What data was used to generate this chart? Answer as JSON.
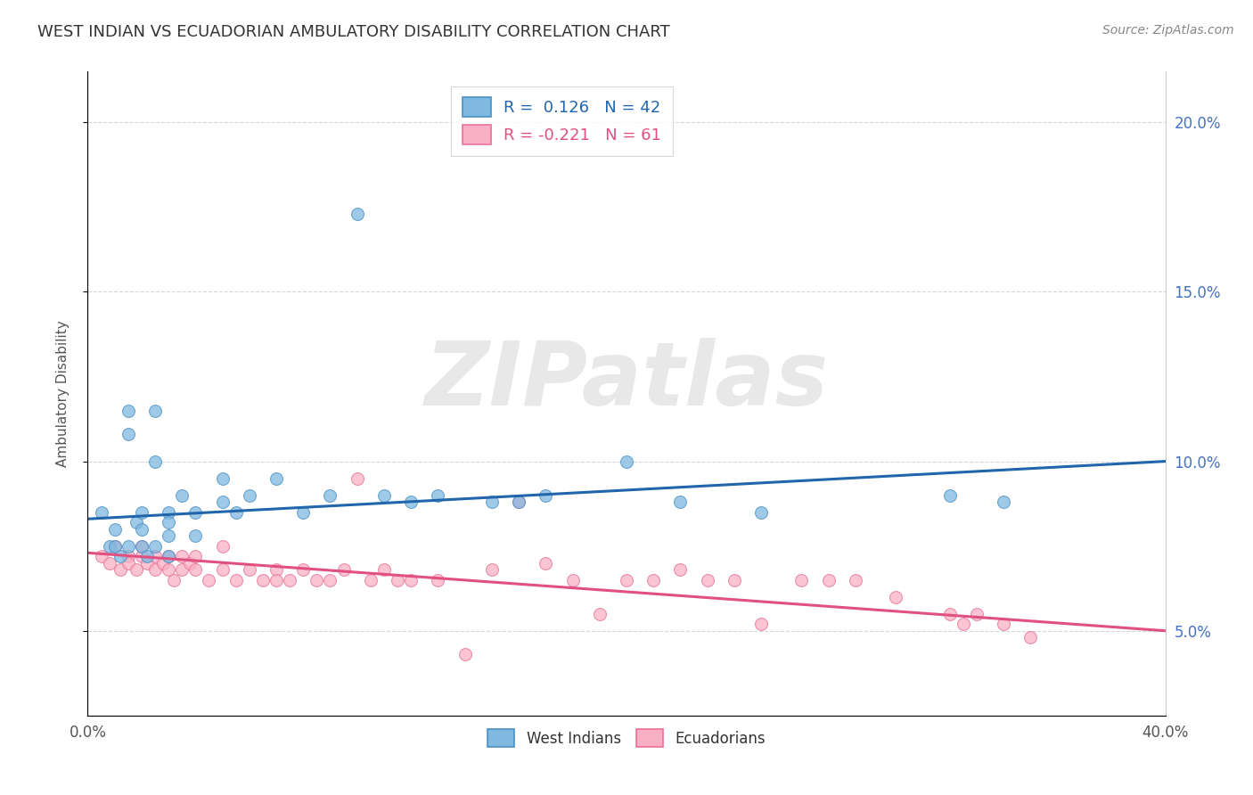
{
  "title": "WEST INDIAN VS ECUADORIAN AMBULATORY DISABILITY CORRELATION CHART",
  "source": "Source: ZipAtlas.com",
  "ylabel": "Ambulatory Disability",
  "watermark": "ZIPatlas",
  "xmin": 0.0,
  "xmax": 0.4,
  "ymin": 0.025,
  "ymax": 0.215,
  "yticks": [
    0.05,
    0.1,
    0.15,
    0.2
  ],
  "ytick_labels_right": [
    "5.0%",
    "10.0%",
    "15.0%",
    "20.0%"
  ],
  "west_indian_R": 0.126,
  "west_indian_N": 42,
  "ecuadorian_R": -0.221,
  "ecuadorian_N": 61,
  "west_indian_color": "#7fb9e0",
  "ecuadorian_color": "#f9b0c5",
  "west_indian_edge_color": "#4a90c4",
  "ecuadorian_edge_color": "#e8729a",
  "west_indian_line_color": "#2166ac",
  "ecuadorian_line_color": "#e05080",
  "background_color": "#ffffff",
  "grid_color": "#cccccc",
  "west_indian_x": [
    0.005,
    0.008,
    0.01,
    0.01,
    0.012,
    0.015,
    0.015,
    0.015,
    0.018,
    0.02,
    0.02,
    0.02,
    0.022,
    0.025,
    0.025,
    0.025,
    0.03,
    0.03,
    0.03,
    0.03,
    0.035,
    0.04,
    0.04,
    0.05,
    0.05,
    0.055,
    0.06,
    0.07,
    0.08,
    0.09,
    0.1,
    0.11,
    0.12,
    0.13,
    0.15,
    0.16,
    0.17,
    0.2,
    0.22,
    0.25,
    0.32,
    0.34
  ],
  "west_indian_y": [
    0.085,
    0.075,
    0.08,
    0.075,
    0.072,
    0.115,
    0.108,
    0.075,
    0.082,
    0.085,
    0.08,
    0.075,
    0.072,
    0.115,
    0.1,
    0.075,
    0.085,
    0.082,
    0.078,
    0.072,
    0.09,
    0.085,
    0.078,
    0.095,
    0.088,
    0.085,
    0.09,
    0.095,
    0.085,
    0.09,
    0.173,
    0.09,
    0.088,
    0.09,
    0.088,
    0.088,
    0.09,
    0.1,
    0.088,
    0.085,
    0.09,
    0.088
  ],
  "ecuadorian_x": [
    0.005,
    0.008,
    0.01,
    0.012,
    0.015,
    0.015,
    0.018,
    0.02,
    0.02,
    0.022,
    0.025,
    0.025,
    0.028,
    0.03,
    0.03,
    0.032,
    0.035,
    0.035,
    0.038,
    0.04,
    0.04,
    0.045,
    0.05,
    0.05,
    0.055,
    0.06,
    0.065,
    0.07,
    0.07,
    0.075,
    0.08,
    0.085,
    0.09,
    0.095,
    0.1,
    0.105,
    0.11,
    0.115,
    0.12,
    0.13,
    0.14,
    0.15,
    0.16,
    0.17,
    0.18,
    0.19,
    0.2,
    0.21,
    0.22,
    0.23,
    0.24,
    0.25,
    0.265,
    0.275,
    0.285,
    0.3,
    0.32,
    0.325,
    0.33,
    0.34,
    0.35
  ],
  "ecuadorian_y": [
    0.072,
    0.07,
    0.075,
    0.068,
    0.072,
    0.07,
    0.068,
    0.072,
    0.075,
    0.07,
    0.072,
    0.068,
    0.07,
    0.072,
    0.068,
    0.065,
    0.068,
    0.072,
    0.07,
    0.072,
    0.068,
    0.065,
    0.075,
    0.068,
    0.065,
    0.068,
    0.065,
    0.068,
    0.065,
    0.065,
    0.068,
    0.065,
    0.065,
    0.068,
    0.095,
    0.065,
    0.068,
    0.065,
    0.065,
    0.065,
    0.043,
    0.068,
    0.088,
    0.07,
    0.065,
    0.055,
    0.065,
    0.065,
    0.068,
    0.065,
    0.065,
    0.052,
    0.065,
    0.065,
    0.065,
    0.06,
    0.055,
    0.052,
    0.055,
    0.052,
    0.048
  ]
}
